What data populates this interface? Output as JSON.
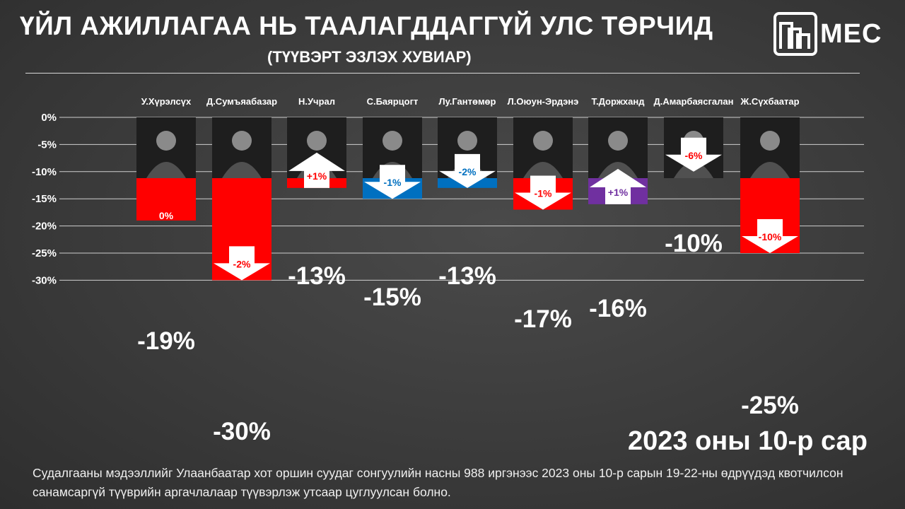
{
  "title": "ҮЙЛ АЖИЛЛАГАА НЬ ТААЛАГДДАГГҮЙ УЛС ТӨРЧИД",
  "subtitle": "(ТҮҮВЭРТ ЭЗЛЭХ ХУВИАР)",
  "logo_text": "MEC",
  "date_stamp": "2023 оны 10-р сар",
  "footnote": "Судалгааны мэдээллийг Улаанбаатар хот оршин суудаг сонгуулийн насны 988 иргэнээс 2023 оны 10-р сарын 19-22-ны өдрүүдэд квотчилсон санамсаргүй түүврийн аргачлалаар түүвэрлэж утсаар цуглуулсан болно.",
  "colors": {
    "red": "#ff0000",
    "blue": "#0070c0",
    "purple": "#7030a0",
    "arrow": "#ffffff",
    "photo": "#1e1e1e"
  },
  "chart_data": {
    "type": "bar",
    "title": "ҮЙЛ АЖИЛЛАГАА НЬ ТААЛАГДДАГГҮЙ УЛС ТӨРЧИД",
    "subtitle": "(ТҮҮВЭРТ ЭЗЛЭХ ХУВИАР)",
    "categories": [
      "У.Хүрэлсүх",
      "Д.Сумъяабазар",
      "Н.Учрал",
      "С.Баярцогт",
      "Лу.Гантөмөр",
      "Л.Оюун-Эрдэнэ",
      "Т.Доржханд",
      "Д.Амарбаясгалан",
      "Ж.Сүхбаатар"
    ],
    "values": [
      -19,
      -30,
      -13,
      -15,
      -13,
      -17,
      -16,
      -10,
      -25
    ],
    "value_labels": [
      "-19%",
      "-30%",
      "-13%",
      "-15%",
      "-13%",
      "-17%",
      "-16%",
      "-10%",
      "-25%"
    ],
    "changes": [
      "0%",
      "-2%",
      "+1%",
      "-1%",
      "-2%",
      "-1%",
      "+1%",
      "-6%",
      "-10%"
    ],
    "change_direction": [
      "none",
      "down",
      "up",
      "down",
      "down",
      "down",
      "up",
      "down",
      "down"
    ],
    "bar_colors": [
      "red",
      "red",
      "red",
      "blue",
      "blue",
      "red",
      "purple",
      "red",
      "red"
    ],
    "ylim": [
      -30,
      0
    ],
    "yticks": [
      0,
      -5,
      -10,
      -15,
      -20,
      -25,
      -30
    ],
    "ytick_labels": [
      "0%",
      "-5%",
      "-10%",
      "-15%",
      "-20%",
      "-25%",
      "-30%"
    ],
    "grid": true,
    "annotation": "2023 оны 10-р сар"
  }
}
